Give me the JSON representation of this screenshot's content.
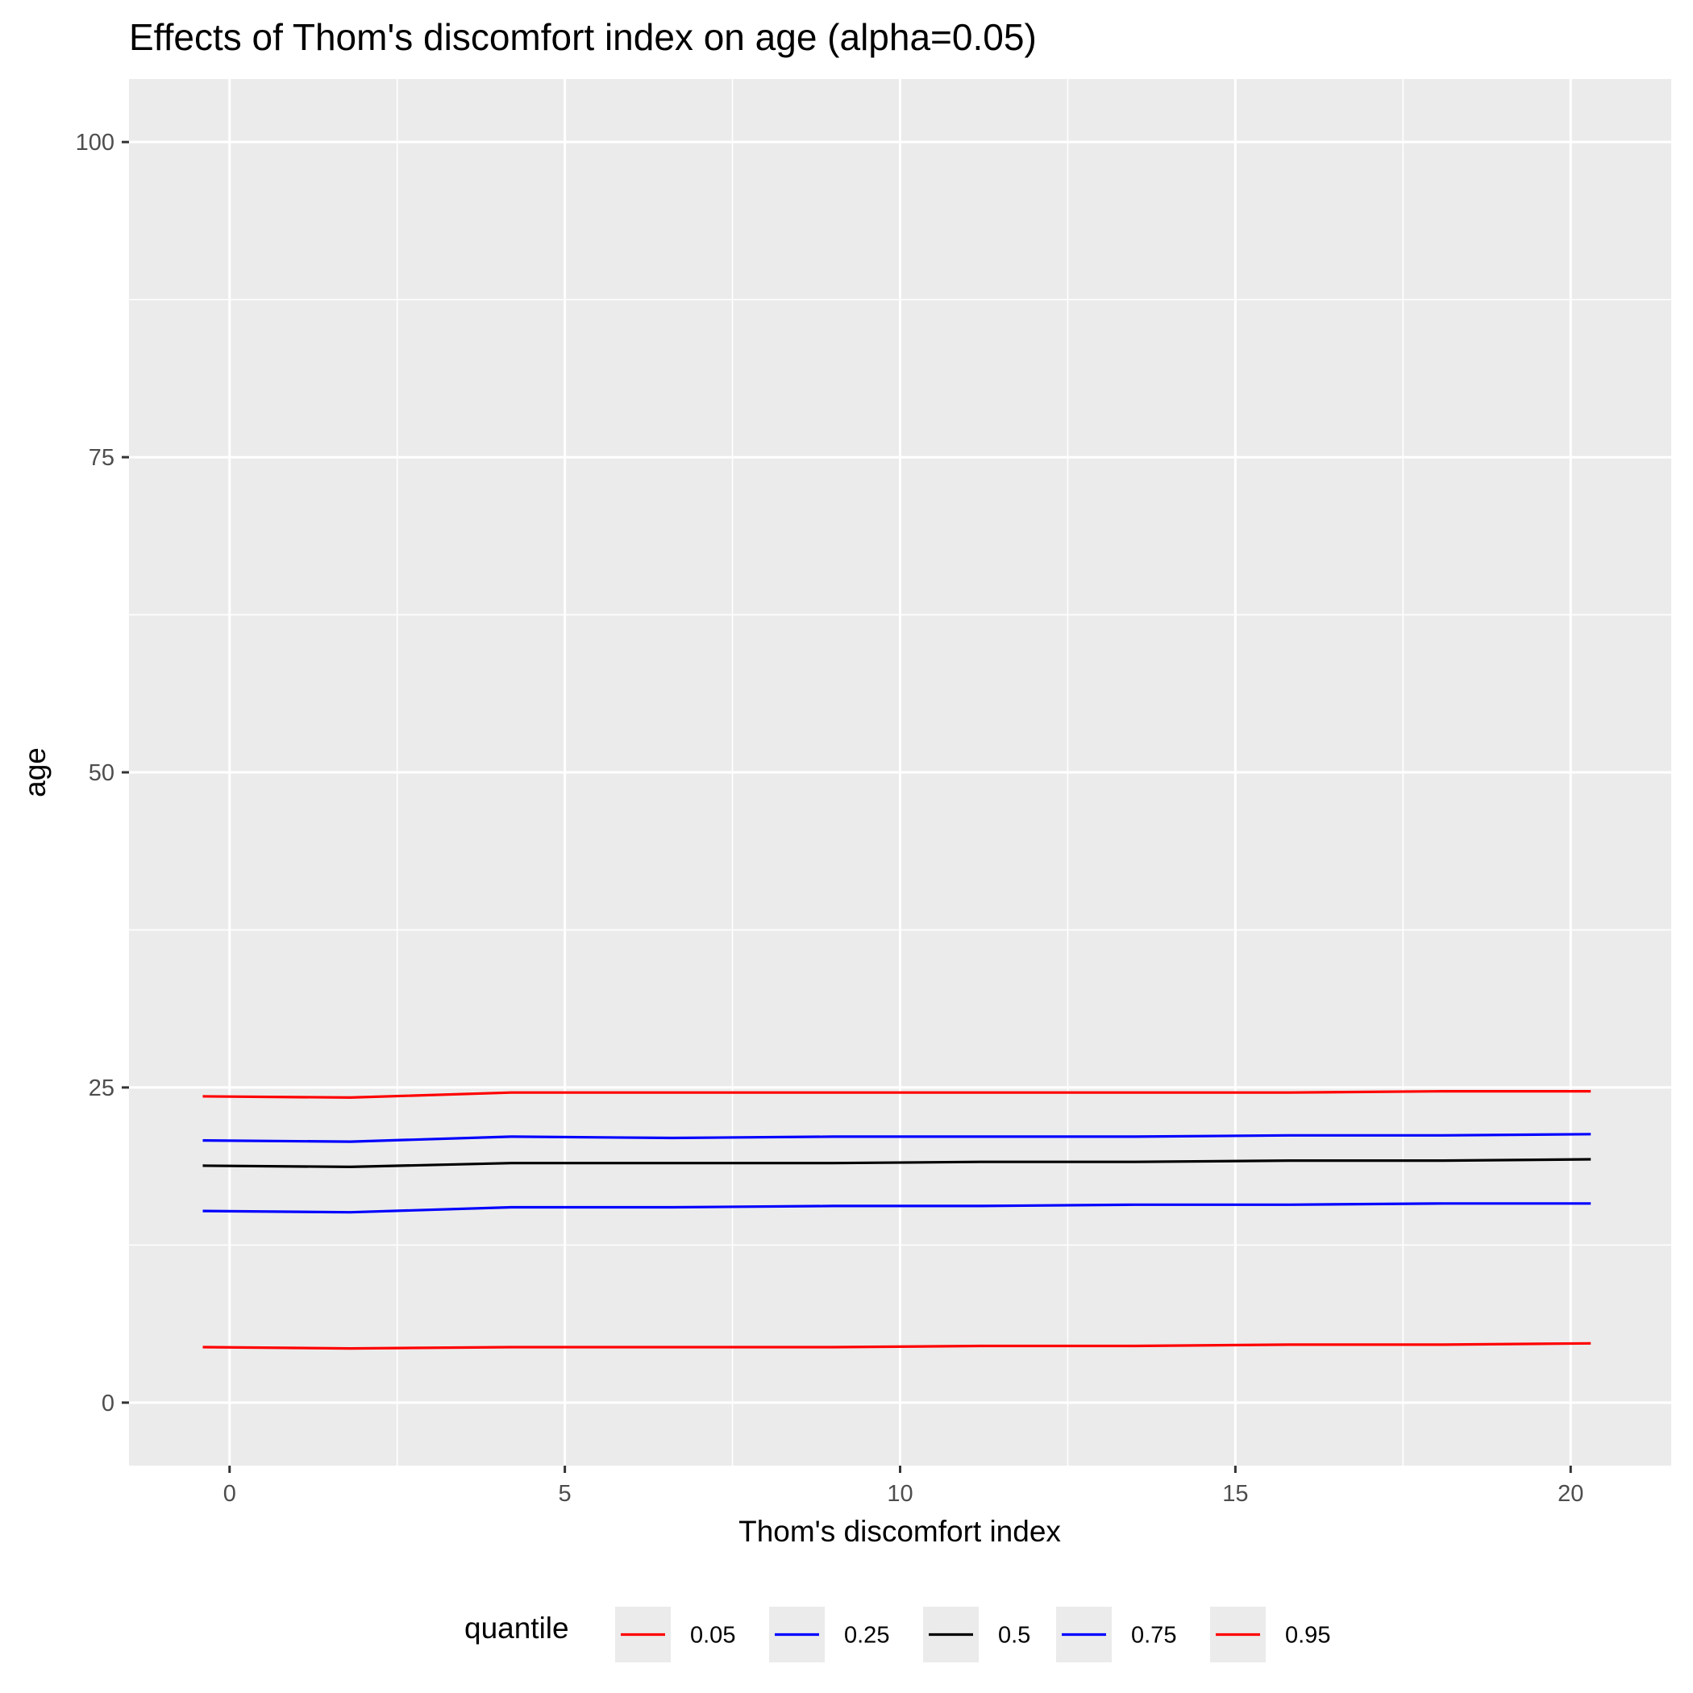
{
  "chart_data": {
    "type": "line",
    "title": "Effects of Thom's discomfort index on age (alpha=0.05)",
    "xlabel": "Thom's discomfort index",
    "ylabel": "age",
    "xlim": [
      -1.5,
      21.5
    ],
    "ylim": [
      -5,
      105
    ],
    "x_ticks": [
      0,
      5,
      10,
      15,
      20
    ],
    "x_tick_labels": [
      "0",
      "5",
      "10",
      "15",
      "20"
    ],
    "y_ticks": [
      0,
      25,
      50,
      75,
      100
    ],
    "y_tick_labels": [
      "0",
      "25",
      "50",
      "75",
      "100"
    ],
    "grid": true,
    "panel_background": "#ebebeb",
    "legend": {
      "title": "quantile",
      "position": "bottom"
    },
    "x": [
      -0.4,
      1.8,
      4.2,
      6.6,
      9.0,
      11.2,
      13.5,
      15.8,
      18.1,
      20.3
    ],
    "series": [
      {
        "name": "0.05",
        "color": "#ff0000",
        "values": [
          4.4,
          4.3,
          4.4,
          4.4,
          4.4,
          4.5,
          4.5,
          4.6,
          4.6,
          4.7
        ]
      },
      {
        "name": "0.25",
        "color": "#0000ff",
        "values": [
          15.2,
          15.1,
          15.5,
          15.5,
          15.6,
          15.6,
          15.7,
          15.7,
          15.8,
          15.8
        ]
      },
      {
        "name": "0.5",
        "color": "#000000",
        "values": [
          18.8,
          18.7,
          19.0,
          19.0,
          19.0,
          19.1,
          19.1,
          19.2,
          19.2,
          19.3
        ]
      },
      {
        "name": "0.75",
        "color": "#0000ff",
        "values": [
          20.8,
          20.7,
          21.1,
          21.0,
          21.1,
          21.1,
          21.1,
          21.2,
          21.2,
          21.3
        ]
      },
      {
        "name": "0.95",
        "color": "#ff0000",
        "values": [
          24.3,
          24.2,
          24.6,
          24.6,
          24.6,
          24.6,
          24.6,
          24.6,
          24.7,
          24.7
        ]
      }
    ]
  }
}
